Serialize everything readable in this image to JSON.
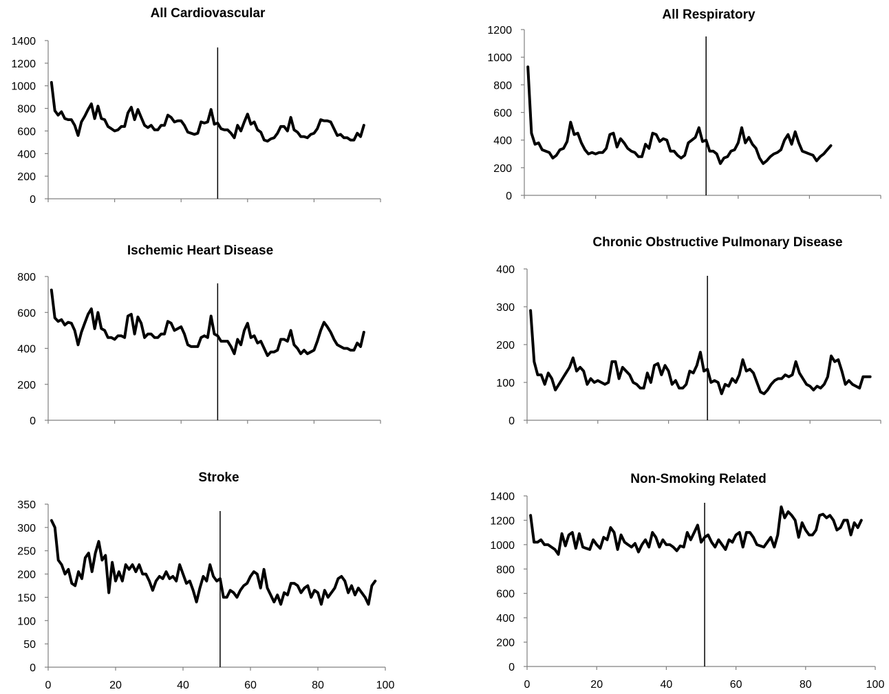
{
  "colors": {
    "series": "#000000",
    "axis": "#808080",
    "background": "#ffffff"
  },
  "chart_data": [
    {
      "type": "line",
      "title": "All Cardiovascular",
      "xlim": [
        0,
        100
      ],
      "ylim": [
        0,
        1400
      ],
      "yticks": [
        0,
        200,
        400,
        600,
        800,
        1000,
        1200,
        1400
      ],
      "xticks": [
        0,
        20,
        40,
        60,
        80,
        100
      ],
      "show_xtick_labels": false,
      "vline_x": 51,
      "xlabel": "",
      "ylabel": "",
      "grid": false,
      "legend": "none",
      "series": [
        {
          "x_start": 1,
          "values": [
            1030,
            780,
            740,
            770,
            710,
            700,
            700,
            650,
            560,
            680,
            730,
            790,
            840,
            710,
            820,
            710,
            700,
            640,
            620,
            600,
            610,
            640,
            640,
            760,
            810,
            700,
            790,
            720,
            650,
            630,
            650,
            610,
            610,
            650,
            650,
            740,
            720,
            680,
            690,
            690,
            650,
            590,
            580,
            570,
            580,
            680,
            670,
            680,
            790,
            660,
            670,
            620,
            610,
            610,
            580,
            540,
            650,
            600,
            680,
            750,
            660,
            680,
            610,
            590,
            520,
            510,
            530,
            540,
            580,
            640,
            640,
            600,
            720,
            610,
            590,
            550,
            550,
            540,
            570,
            580,
            620,
            700,
            690,
            690,
            680,
            620,
            560,
            570,
            540,
            540,
            520,
            520,
            580,
            550,
            650
          ]
        }
      ]
    },
    {
      "type": "line",
      "title": "Ischemic Heart Disease",
      "xlim": [
        0,
        100
      ],
      "ylim": [
        0,
        800
      ],
      "yticks": [
        0,
        200,
        400,
        600,
        800
      ],
      "xticks": [
        0,
        20,
        40,
        60,
        80,
        100
      ],
      "show_xtick_labels": false,
      "vline_x": 51,
      "xlabel": "",
      "ylabel": "",
      "grid": false,
      "legend": "none",
      "series": [
        {
          "x_start": 1,
          "values": [
            725,
            570,
            550,
            560,
            530,
            545,
            540,
            500,
            420,
            490,
            540,
            590,
            620,
            510,
            600,
            510,
            500,
            460,
            460,
            450,
            470,
            470,
            460,
            580,
            590,
            480,
            575,
            540,
            460,
            480,
            480,
            460,
            460,
            480,
            480,
            550,
            540,
            500,
            510,
            520,
            480,
            420,
            410,
            410,
            410,
            460,
            470,
            460,
            580,
            480,
            470,
            440,
            440,
            440,
            410,
            370,
            450,
            420,
            500,
            540,
            460,
            470,
            430,
            440,
            400,
            360,
            380,
            380,
            390,
            450,
            450,
            440,
            500,
            420,
            400,
            370,
            390,
            370,
            380,
            390,
            440,
            500,
            545,
            520,
            490,
            450,
            420,
            410,
            400,
            400,
            390,
            390,
            430,
            410,
            490
          ]
        }
      ]
    },
    {
      "type": "line",
      "title": "Stroke",
      "xlim": [
        0,
        100
      ],
      "ylim": [
        0,
        350
      ],
      "yticks": [
        0,
        50,
        100,
        150,
        200,
        250,
        300,
        350
      ],
      "xticks": [
        0,
        20,
        40,
        60,
        80,
        100
      ],
      "show_xtick_labels": true,
      "vline_x": 51,
      "xlabel": "",
      "ylabel": "",
      "grid": false,
      "legend": "none",
      "series": [
        {
          "x_start": 1,
          "values": [
            315,
            300,
            230,
            220,
            200,
            210,
            180,
            175,
            205,
            190,
            235,
            245,
            205,
            245,
            270,
            230,
            240,
            160,
            225,
            185,
            205,
            185,
            220,
            210,
            220,
            205,
            220,
            200,
            200,
            185,
            165,
            185,
            195,
            190,
            205,
            190,
            195,
            185,
            220,
            200,
            180,
            185,
            165,
            140,
            170,
            195,
            185,
            220,
            195,
            185,
            190,
            150,
            150,
            165,
            160,
            150,
            165,
            175,
            180,
            195,
            205,
            200,
            170,
            210,
            170,
            155,
            140,
            155,
            135,
            160,
            155,
            180,
            180,
            175,
            160,
            170,
            175,
            150,
            165,
            160,
            135,
            165,
            150,
            160,
            170,
            190,
            195,
            185,
            160,
            175,
            155,
            170,
            160,
            150,
            135,
            175,
            185
          ]
        }
      ]
    },
    {
      "type": "line",
      "title": "All Respiratory",
      "xlim": [
        0,
        100
      ],
      "ylim": [
        0,
        1200
      ],
      "yticks": [
        0,
        200,
        400,
        600,
        800,
        1000,
        1200
      ],
      "xticks": [
        0,
        20,
        40,
        60,
        80,
        100
      ],
      "show_xtick_labels": false,
      "vline_x": 51,
      "xlabel": "",
      "ylabel": "",
      "grid": false,
      "legend": "none",
      "series": [
        {
          "x_start": 1,
          "values": [
            930,
            450,
            370,
            380,
            330,
            320,
            310,
            270,
            290,
            330,
            340,
            390,
            530,
            440,
            450,
            380,
            330,
            300,
            310,
            300,
            310,
            310,
            340,
            440,
            450,
            350,
            410,
            380,
            340,
            320,
            310,
            280,
            280,
            370,
            340,
            450,
            440,
            390,
            410,
            400,
            320,
            320,
            290,
            270,
            290,
            380,
            400,
            420,
            490,
            390,
            400,
            320,
            320,
            300,
            230,
            270,
            280,
            320,
            330,
            380,
            490,
            380,
            420,
            370,
            340,
            270,
            230,
            250,
            280,
            300,
            310,
            330,
            400,
            440,
            370,
            460,
            380,
            320,
            310,
            300,
            290,
            250,
            280,
            300,
            330,
            360
          ]
        }
      ]
    },
    {
      "type": "line",
      "title": "Chronic Obstructive Pulmonary Disease",
      "xlim": [
        0,
        100
      ],
      "ylim": [
        0,
        400
      ],
      "yticks": [
        0,
        100,
        200,
        300,
        400
      ],
      "xticks": [
        0,
        20,
        40,
        60,
        80,
        100
      ],
      "show_xtick_labels": false,
      "vline_x": 51,
      "xlabel": "",
      "ylabel": "",
      "grid": false,
      "legend": "none",
      "series": [
        {
          "x_start": 1,
          "values": [
            290,
            155,
            120,
            120,
            95,
            125,
            110,
            80,
            95,
            110,
            125,
            140,
            165,
            130,
            140,
            130,
            95,
            110,
            100,
            105,
            100,
            95,
            100,
            155,
            155,
            110,
            140,
            130,
            120,
            100,
            95,
            85,
            85,
            125,
            100,
            145,
            150,
            120,
            145,
            130,
            95,
            105,
            85,
            85,
            95,
            130,
            125,
            145,
            180,
            130,
            135,
            100,
            105,
            100,
            70,
            95,
            90,
            110,
            100,
            120,
            160,
            130,
            135,
            125,
            100,
            75,
            70,
            80,
            95,
            105,
            110,
            110,
            120,
            115,
            120,
            155,
            125,
            110,
            95,
            90,
            80,
            90,
            85,
            95,
            115,
            170,
            155,
            160,
            130,
            95,
            105,
            95,
            90,
            85,
            115,
            115,
            115
          ]
        }
      ]
    },
    {
      "type": "line",
      "title": "Non-Smoking Related",
      "xlim": [
        0,
        100
      ],
      "ylim": [
        0,
        1400
      ],
      "yticks": [
        0,
        200,
        400,
        600,
        800,
        1000,
        1200,
        1400
      ],
      "xticks": [
        0,
        20,
        40,
        60,
        80,
        100
      ],
      "show_xtick_labels": true,
      "vline_x": 51,
      "xlabel": "",
      "ylabel": "",
      "grid": false,
      "legend": "none",
      "series": [
        {
          "x_start": 1,
          "values": [
            1240,
            1020,
            1020,
            1040,
            1000,
            1000,
            980,
            960,
            920,
            1090,
            990,
            1080,
            1100,
            970,
            1090,
            980,
            970,
            960,
            1040,
            1000,
            970,
            1060,
            1040,
            1140,
            1100,
            960,
            1080,
            1020,
            1000,
            980,
            1010,
            940,
            1000,
            1040,
            980,
            1100,
            1060,
            980,
            1040,
            1000,
            1000,
            980,
            950,
            990,
            980,
            1100,
            1040,
            1100,
            1160,
            1020,
            1060,
            1080,
            1020,
            980,
            1040,
            1000,
            960,
            1040,
            1020,
            1080,
            1100,
            980,
            1100,
            1100,
            1060,
            1000,
            990,
            980,
            1020,
            1060,
            980,
            1080,
            1310,
            1220,
            1270,
            1240,
            1200,
            1060,
            1180,
            1120,
            1080,
            1080,
            1120,
            1240,
            1250,
            1220,
            1240,
            1200,
            1120,
            1140,
            1200,
            1200,
            1080,
            1180,
            1140,
            1200
          ]
        }
      ]
    }
  ]
}
